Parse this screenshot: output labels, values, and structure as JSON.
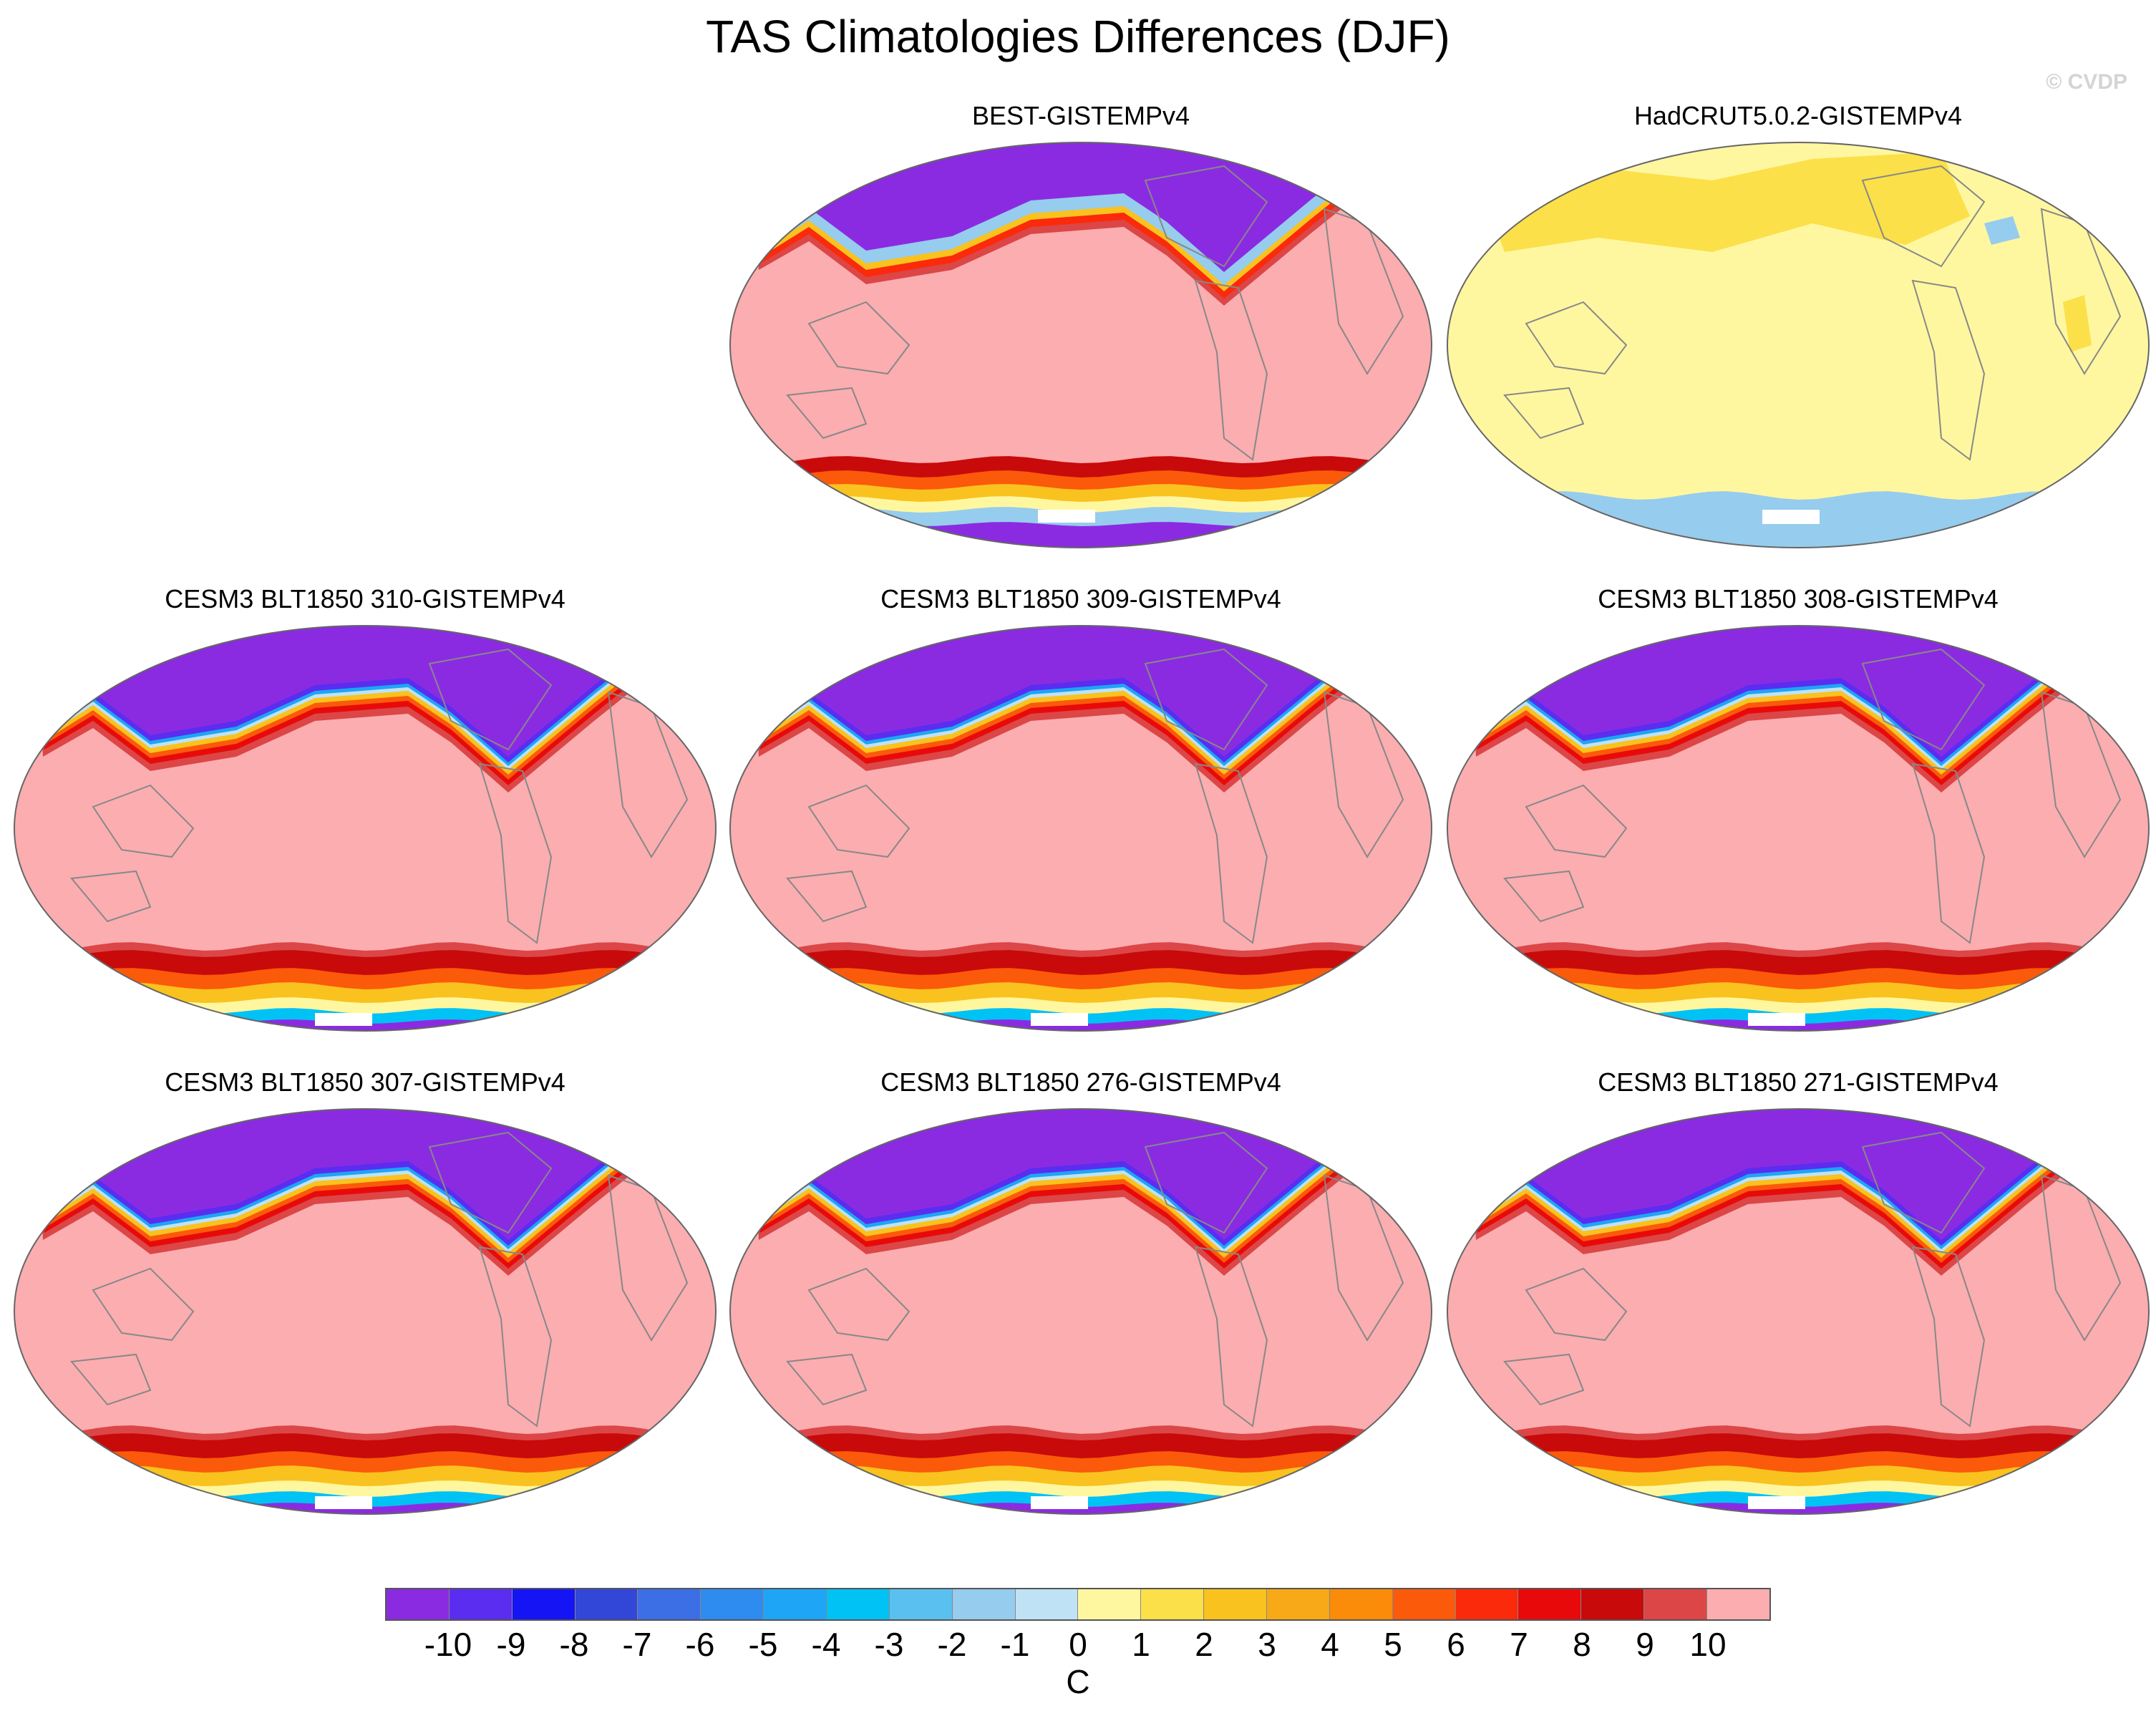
{
  "title": "TAS Climatologies Differences (DJF)",
  "watermark": "© CVDP",
  "panels": [
    {
      "title": "BEST-GISTEMPv4",
      "style": "warm"
    },
    {
      "title": "HadCRUT5.0.2-GISTEMPv4",
      "style": "yellow"
    },
    {
      "title": "CESM3 BLT1850 310-GISTEMPv4",
      "style": "model"
    },
    {
      "title": "CESM3 BLT1850 309-GISTEMPv4",
      "style": "model"
    },
    {
      "title": "CESM3 BLT1850 308-GISTEMPv4",
      "style": "model"
    },
    {
      "title": "CESM3 BLT1850 307-GISTEMPv4",
      "style": "model"
    },
    {
      "title": "CESM3 BLT1850 276-GISTEMPv4",
      "style": "model"
    },
    {
      "title": "CESM3 BLT1850 271-GISTEMPv4",
      "style": "model"
    }
  ],
  "chart_data": {
    "type": "heatmap",
    "title": "TAS Climatologies Differences (DJF)",
    "projection": "global map, Pacific-centered",
    "colorbar": {
      "label": "C",
      "levels": [
        -10,
        -9,
        -8,
        -7,
        -6,
        -5,
        -4,
        -3,
        -2,
        -1,
        0,
        1,
        2,
        3,
        4,
        5,
        6,
        7,
        8,
        9,
        10
      ],
      "tick_labels": [
        "-10",
        "-9",
        "-8",
        "-7",
        "-6",
        "-5",
        "-4",
        "-3",
        "-2",
        "-1",
        "0",
        "1",
        "2",
        "3",
        "4",
        "5",
        "6",
        "7",
        "8",
        "9",
        "10"
      ],
      "colors": [
        "#8a2be2",
        "#5a2df0",
        "#1414f5",
        "#3246d8",
        "#3c6ee6",
        "#2e8cf0",
        "#1ea5f5",
        "#00c2f5",
        "#5ac0f0",
        "#96ccee",
        "#bfe2f5",
        "#fff7a0",
        "#fbe04a",
        "#f9c21e",
        "#f8a918",
        "#fa8c0a",
        "#fa5a0a",
        "#fa2a0a",
        "#e80a0a",
        "#c80a0a",
        "#dc4646",
        "#fbadb0"
      ]
    }
  }
}
